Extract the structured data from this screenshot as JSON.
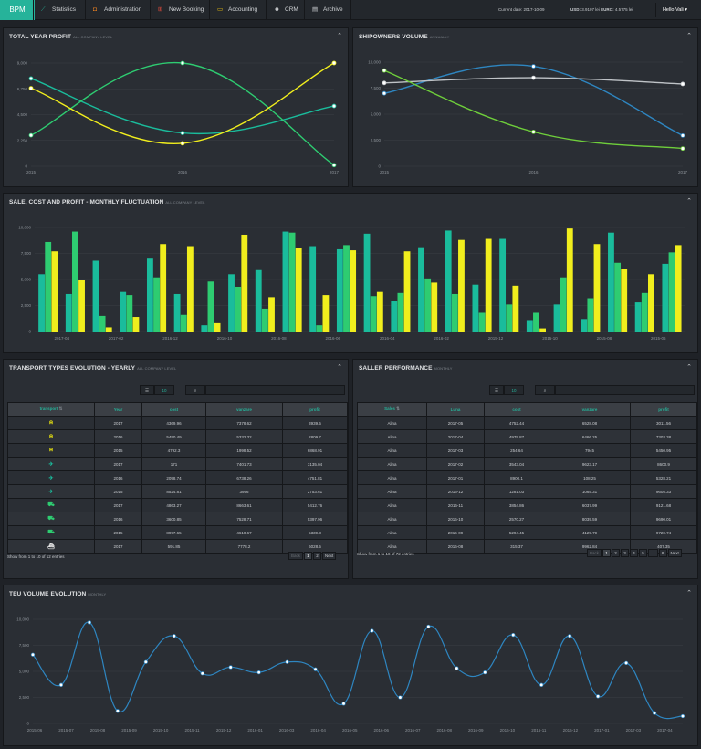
{
  "nav": {
    "brand": "BPM",
    "items": [
      {
        "label": "Statistics",
        "icon": "chart-icon"
      },
      {
        "label": "Administration",
        "icon": "briefcase-icon"
      },
      {
        "label": "New Booking",
        "icon": "plus-square-icon"
      },
      {
        "label": "Accounting",
        "icon": "money-icon"
      },
      {
        "label": "CRM",
        "icon": "users-icon"
      },
      {
        "label": "Archive",
        "icon": "archive-icon"
      }
    ],
    "current_date_label": "Current date:",
    "current_date": "2017-10-09",
    "usd_label": "USD:",
    "usd": "3.9107 lei",
    "euro_label": "EURO:",
    "euro": "4.5775 lei",
    "user": "Hello Vali",
    "user_caret": "▾"
  },
  "panels": {
    "total_year_profit": {
      "title": "TOTAL YEAR PROFIT",
      "subtitle": "ALL COMPANY LEVEL"
    },
    "shipowners_volume": {
      "title": "SHIPOWNERS VOLUME",
      "subtitle": "ANNUALLY"
    },
    "sale_cost_profit": {
      "title": "SALE, COST AND PROFIT - MONTHLY FLUCTUATION",
      "subtitle": "ALL COMPANY LEVEL"
    },
    "transport_types": {
      "title": "TRANSPORT TYPES EVOLUTION - YEARLY",
      "subtitle": "ALL COMPANY LEVEL"
    },
    "saller_performance": {
      "title": "SALLER PERFORMANCE",
      "subtitle": "MONTHLY"
    },
    "teu_volume": {
      "title": "TEU VOLUME EVOLUTION",
      "subtitle": "MONTHLY"
    }
  },
  "chart_data": [
    {
      "type": "line",
      "id": "total_year_profit",
      "x": [
        "2015",
        "2016",
        "2017"
      ],
      "yticks": [
        "0",
        "2,250",
        "4,500",
        "6,750",
        "9,000"
      ],
      "ylim": [
        0,
        9000
      ],
      "series": [
        {
          "color": "#1abc9c",
          "values": [
            7650,
            2900,
            5250
          ]
        },
        {
          "color": "#2ecc71",
          "values": [
            2700,
            9000,
            100
          ]
        },
        {
          "color": "#f1ee1d",
          "values": [
            6800,
            2000,
            9000
          ]
        }
      ]
    },
    {
      "type": "line",
      "id": "shipowners_volume",
      "x": [
        "2015",
        "2016",
        "2017"
      ],
      "yticks": [
        "0",
        "2,500",
        "5,000",
        "7,500",
        "10,000"
      ],
      "ylim": [
        0,
        10000
      ],
      "series": [
        {
          "color": "#2e86c1",
          "values": [
            7000,
            9600,
            2950
          ]
        },
        {
          "color": "#bfc3c7",
          "values": [
            8000,
            8500,
            7900
          ]
        },
        {
          "color": "#6fcf3b",
          "values": [
            9200,
            3300,
            1700
          ]
        }
      ]
    },
    {
      "type": "bar",
      "id": "sale_cost_profit",
      "xticks": [
        "2017-04",
        "2017-02",
        "2016-12",
        "2016-10",
        "2016-08",
        "2016-06",
        "2016-04",
        "2016-02",
        "2015-12",
        "2015-10",
        "2015-08",
        "2015-06"
      ],
      "yticks": [
        "0",
        "2,500",
        "5,000",
        "7,500",
        "10,000"
      ],
      "ylim": [
        0,
        10000
      ],
      "series_colors": [
        "#1abc9c",
        "#2ecc71",
        "#f1ee1d"
      ],
      "groups": [
        [
          5500,
          8600,
          7700
        ],
        [
          3600,
          9600,
          5000
        ],
        [
          6800,
          1500,
          400
        ],
        [
          3800,
          3500,
          1400
        ],
        [
          7000,
          5200,
          8400
        ],
        [
          3600,
          1600,
          8200
        ],
        [
          600,
          4800,
          800
        ],
        [
          5500,
          4300,
          9300
        ],
        [
          5900,
          2200,
          3300
        ],
        [
          9600,
          9500,
          8000
        ],
        [
          8200,
          600,
          3500
        ],
        [
          7900,
          8300,
          7800
        ],
        [
          9400,
          3400,
          3800
        ],
        [
          2900,
          3700,
          7700
        ],
        [
          8100,
          5100,
          4700
        ],
        [
          9700,
          3600,
          8800
        ],
        [
          4500,
          1800,
          8900
        ],
        [
          8900,
          2600,
          4400
        ],
        [
          1100,
          1800,
          300
        ],
        [
          2600,
          5200,
          9900
        ],
        [
          1200,
          3200,
          8400
        ],
        [
          9500,
          6600,
          6000
        ],
        [
          2800,
          3700,
          5500
        ],
        [
          6500,
          7600,
          8300
        ]
      ]
    },
    {
      "type": "line",
      "id": "teu_volume",
      "xticks": [
        "2015-06",
        "2015-07",
        "2015-08",
        "2015-09",
        "2015-10",
        "2015-11",
        "2015-12",
        "2016-01",
        "2016-03",
        "2016-04",
        "2016-05",
        "2016-06",
        "2016-07",
        "2016-08",
        "2016-09",
        "2016-10",
        "2016-11",
        "2016-12",
        "2017-01",
        "2017-03",
        "2017-04"
      ],
      "yticks": [
        "0",
        "2,500",
        "5,000",
        "7,500",
        "10,000"
      ],
      "ylim": [
        0,
        10000
      ],
      "series": [
        {
          "color": "#2e86c1",
          "values": [
            6600,
            3700,
            9700,
            1200,
            5900,
            8400,
            4800,
            5400,
            4900,
            5900,
            5200,
            1900,
            8900,
            2500,
            9300,
            5300,
            4900,
            8500,
            3700,
            8400,
            2600,
            5800,
            1000,
            700
          ]
        }
      ]
    }
  ],
  "transport_table": {
    "page_size": "10",
    "columns": [
      "transport",
      "Year",
      "cost",
      "vanzare",
      "profit"
    ],
    "rows": [
      {
        "type": "bell",
        "glyph": "⍾",
        "year": "2017",
        "cost": "4369.96",
        "vanzare": "7378.62",
        "profit": "3939.5"
      },
      {
        "type": "bell",
        "glyph": "⍾",
        "year": "2016",
        "cost": "5490.49",
        "vanzare": "5332.32",
        "profit": "2809.7"
      },
      {
        "type": "bell",
        "glyph": "⍾",
        "year": "2015",
        "cost": "4792.3",
        "vanzare": "1998.52",
        "profit": "6868.91"
      },
      {
        "type": "plane",
        "glyph": "✈",
        "year": "2017",
        "cost": "171",
        "vanzare": "7401.73",
        "profit": "3135.04"
      },
      {
        "type": "plane",
        "glyph": "✈",
        "year": "2016",
        "cost": "2098.74",
        "vanzare": "6738.26",
        "profit": "4751.81"
      },
      {
        "type": "plane",
        "glyph": "✈",
        "year": "2015",
        "cost": "8524.81",
        "vanzare": "3956",
        "profit": "2753.61"
      },
      {
        "type": "truck",
        "glyph": "⛟",
        "year": "2017",
        "cost": "4863.27",
        "vanzare": "8663.61",
        "profit": "5412.76"
      },
      {
        "type": "truck",
        "glyph": "⛟",
        "year": "2016",
        "cost": "3600.85",
        "vanzare": "7528.71",
        "profit": "5397.96"
      },
      {
        "type": "truck",
        "glyph": "⛟",
        "year": "2015",
        "cost": "8997.65",
        "vanzare": "4610.67",
        "profit": "5339.3"
      },
      {
        "type": "ship",
        "glyph": "⛴",
        "year": "2017",
        "cost": "591.85",
        "vanzare": "7778.2",
        "profit": "6028.5"
      }
    ],
    "info": "Show from 1 to 10 of 12 entries",
    "pager": [
      "Back",
      "1",
      "2",
      "Next"
    ],
    "active_page": "1"
  },
  "saller_table": {
    "page_size": "10",
    "columns": [
      "Sales",
      "Luna",
      "cost",
      "vanzare",
      "profit"
    ],
    "rows": [
      {
        "sales": "Alina",
        "luna": "2017-05",
        "cost": "4752.44",
        "vanzare": "6528.08",
        "profit": "3011.56"
      },
      {
        "sales": "Alina",
        "luna": "2017-04",
        "cost": "4979.87",
        "vanzare": "6466.25",
        "profit": "7303.38"
      },
      {
        "sales": "Alina",
        "luna": "2017-03",
        "cost": "254.64",
        "vanzare": "7945",
        "profit": "5450.95"
      },
      {
        "sales": "Alina",
        "luna": "2017-02",
        "cost": "3543.04",
        "vanzare": "9623.17",
        "profit": "8600.9"
      },
      {
        "sales": "Alina",
        "luna": "2017-01",
        "cost": "8900.1",
        "vanzare": "108.25",
        "profit": "5328.21"
      },
      {
        "sales": "Alina",
        "luna": "2016-12",
        "cost": "1281.03",
        "vanzare": "1065.31",
        "profit": "9605.33"
      },
      {
        "sales": "Alina",
        "luna": "2016-11",
        "cost": "3854.86",
        "vanzare": "6037.99",
        "profit": "9121.68"
      },
      {
        "sales": "Alina",
        "luna": "2016-10",
        "cost": "2570.27",
        "vanzare": "8039.59",
        "profit": "9690.01"
      },
      {
        "sales": "Alina",
        "luna": "2016-09",
        "cost": "5294.45",
        "vanzare": "4129.79",
        "profit": "9720.74"
      },
      {
        "sales": "Alina",
        "luna": "2016-08",
        "cost": "315.37",
        "vanzare": "9962.84",
        "profit": "407.35"
      }
    ],
    "info": "Show from 1 to 10 of 72 entries",
    "pager": [
      "Back",
      "1",
      "2",
      "3",
      "4",
      "5",
      "…",
      "8",
      "Next"
    ],
    "active_page": "1"
  }
}
